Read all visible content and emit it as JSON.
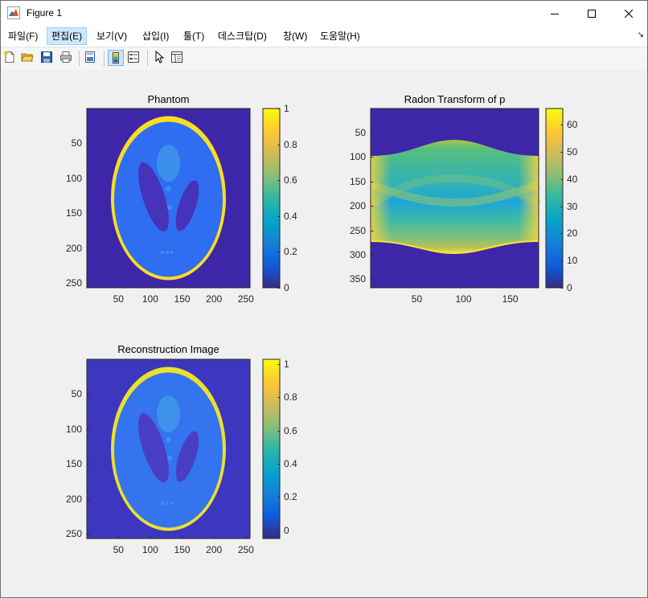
{
  "window": {
    "title": "Figure 1",
    "icon": "matlab-figure-icon",
    "controls": [
      "minimize-icon",
      "maximize-icon",
      "close-icon"
    ]
  },
  "menu": {
    "items": [
      "파일(F)",
      "편집(E)",
      "보기(V)",
      "삽입(I)",
      "툴(T)",
      "데스크탑(D)",
      "창(W)",
      "도움말(H)"
    ],
    "highlighted": "편집(E)",
    "overflow_glyph": "↘"
  },
  "toolbar": {
    "buttons": [
      "new-figure-icon",
      "open-file-icon",
      "save-icon",
      "print-icon",
      "print-preview-icon",
      "link-plot-icon",
      "insert-colorbar-icon",
      "insert-legend-icon",
      "edit-plot-icon",
      "property-inspector-icon"
    ],
    "active": "link-plot-icon"
  },
  "colormap": "parula",
  "colors": {
    "axes_edge": "#262626",
    "ui_bg": "#f0f0f0",
    "menu_highlight": "#cce8ff"
  },
  "chart_data": [
    {
      "type": "heatmap",
      "title": "Phantom",
      "xlabel": "",
      "ylabel": "",
      "xticks": [
        "50",
        "100",
        "150",
        "200",
        "250"
      ],
      "yticks": [
        "50",
        "100",
        "150",
        "200",
        "250"
      ],
      "xlim": [
        0.5,
        256.5
      ],
      "ylim": [
        0.5,
        256.5
      ],
      "colorbar": {
        "ticks": [
          "0",
          "0.2",
          "0.4",
          "0.6",
          "0.8",
          "1"
        ],
        "clim": [
          0,
          1
        ]
      }
    },
    {
      "type": "heatmap",
      "title": "Radon Transform of p",
      "xlabel": "",
      "ylabel": "",
      "xticks": [
        "50",
        "100",
        "150"
      ],
      "yticks": [
        "50",
        "100",
        "150",
        "200",
        "250",
        "300",
        "350"
      ],
      "xlim": [
        0.5,
        180.5
      ],
      "ylim": [
        0.5,
        367.5
      ],
      "colorbar": {
        "ticks": [
          "0",
          "10",
          "20",
          "30",
          "40",
          "50",
          "60"
        ],
        "clim": [
          0,
          66
        ]
      }
    },
    {
      "type": "heatmap",
      "title": "Reconstruction Image",
      "xlabel": "",
      "ylabel": "",
      "xticks": [
        "50",
        "100",
        "150",
        "200",
        "250"
      ],
      "yticks": [
        "50",
        "100",
        "150",
        "200",
        "250"
      ],
      "xlim": [
        0.5,
        256.5
      ],
      "ylim": [
        0.5,
        256.5
      ],
      "colorbar": {
        "ticks": [
          "0",
          "0.2",
          "0.4",
          "0.6",
          "0.8",
          "1"
        ],
        "clim": [
          -0.05,
          1.03
        ]
      }
    }
  ]
}
